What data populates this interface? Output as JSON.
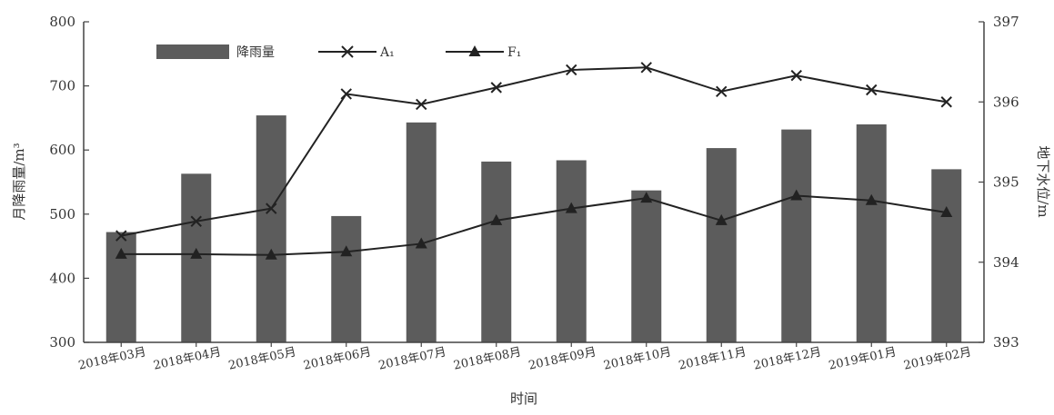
{
  "chart_data": {
    "type": "bar+line",
    "categories": [
      "2018年03月",
      "2018年04月",
      "2018年05月",
      "2018年06月",
      "2018年07月",
      "2018年08月",
      "2018年09月",
      "2018年10月",
      "2018年11月",
      "2018年12月",
      "2019年01月",
      "2019年02月"
    ],
    "xlabel": "时间",
    "ylabel_left": "月降雨量/m³",
    "ylabel_right": "地下水位/m",
    "ylim_left": [
      300,
      800
    ],
    "ylim_right": [
      393,
      397
    ],
    "yticks_left": [
      "300",
      "400",
      "500",
      "600",
      "700",
      "800"
    ],
    "yticks_right": [
      "393",
      "394",
      "395",
      "396",
      "397"
    ],
    "series": [
      {
        "name": "降雨量",
        "kind": "bar",
        "axis": "left",
        "values": [
          472,
          563,
          654,
          497,
          643,
          582,
          584,
          537,
          603,
          632,
          640,
          570
        ]
      },
      {
        "name": "A₁",
        "kind": "line",
        "marker": "x",
        "axis": "right",
        "values": [
          394.33,
          394.51,
          394.67,
          396.1,
          395.97,
          396.18,
          396.4,
          396.43,
          396.13,
          396.33,
          396.15,
          396.0
        ]
      },
      {
        "name": "F₁",
        "kind": "line",
        "marker": "triangle",
        "axis": "right",
        "values": [
          394.1,
          394.1,
          394.09,
          394.13,
          394.23,
          394.52,
          394.67,
          394.8,
          394.52,
          394.83,
          394.77,
          394.62
        ]
      }
    ],
    "legend_position": "top-left",
    "grid": false,
    "colors": {
      "bar": "#5c5c5c",
      "line": "#222222",
      "axis": "#444444"
    }
  }
}
